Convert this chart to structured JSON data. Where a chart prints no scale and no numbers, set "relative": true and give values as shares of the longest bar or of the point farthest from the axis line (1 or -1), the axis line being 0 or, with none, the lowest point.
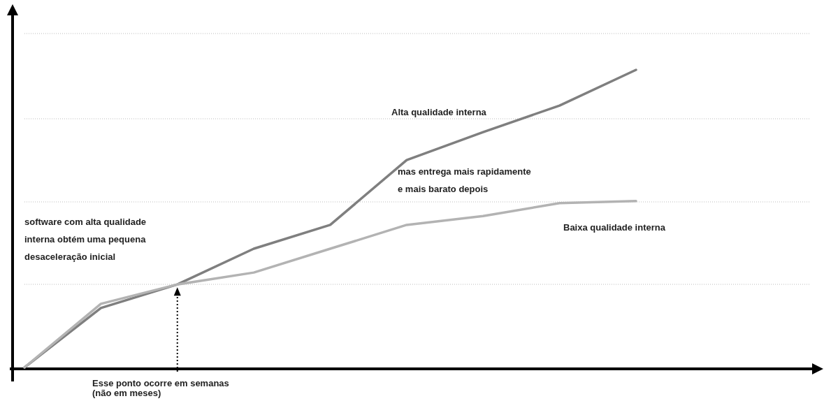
{
  "chart_data": {
    "type": "line",
    "relative": true,
    "categories": [
      null,
      null,
      null,
      null,
      null,
      null,
      null,
      null,
      null
    ],
    "series": [
      {
        "name": "Alta qualidade interna",
        "color": "#7f7f7f",
        "values": [
          0,
          0.2,
          0.279,
          0.399,
          0.479,
          0.697,
          0.791,
          0.88,
          1
        ]
      },
      {
        "name": "Baixa qualidade interna",
        "color": "#b3b3b3",
        "values": [
          0,
          0.214,
          0.279,
          0.319,
          0.399,
          0.479,
          0.509,
          0.552,
          0.559
        ]
      }
    ],
    "annotations": [
      "software com alta qualidade\ninterna obtém uma pequena\ndesaceleração inicial",
      "mas entrega mais rapidamente\ne mais barato depois",
      "Esse ponto ocorre em semanas\n(não em meses)"
    ],
    "grid": "y",
    "legend": false,
    "marker": "none",
    "line_style": "solid"
  }
}
